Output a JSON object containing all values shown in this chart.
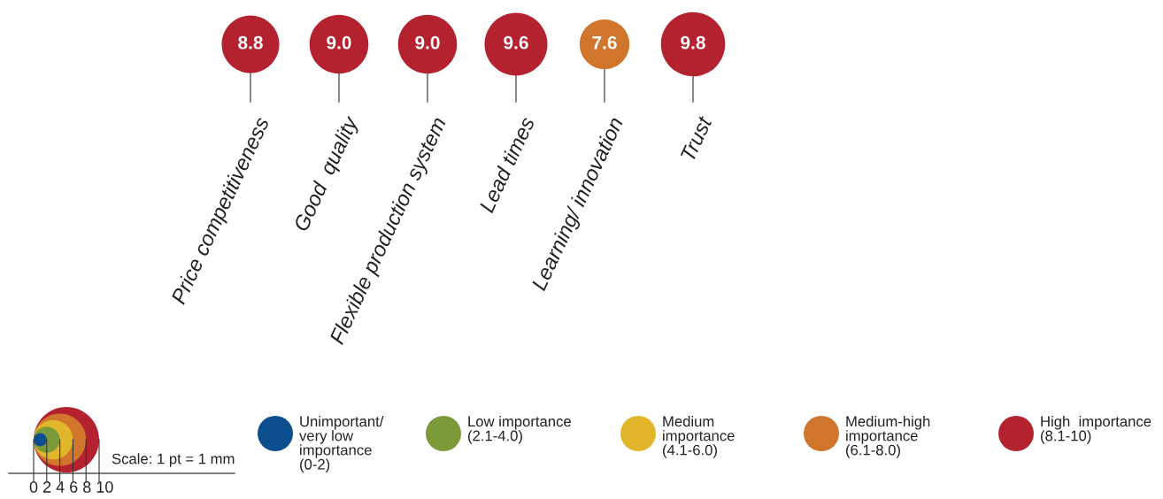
{
  "chart_data": {
    "type": "other",
    "categories": [
      "Price competitiveness",
      "Good  quality",
      "Flexible production system",
      "Lead times",
      "Learning/ innovation",
      "Trust"
    ],
    "series": [
      {
        "name": "Unimportant/\nvery low\nimportance\n(0-2)",
        "color": "#0b4f8f",
        "values": [
          null,
          null,
          null,
          null,
          null,
          null
        ]
      },
      {
        "name": "Low importance\n(2.1-4.0)",
        "color": "#7d9a3b",
        "values": [
          null,
          null,
          null,
          null,
          null,
          null
        ]
      },
      {
        "name": "Medium\nimportance\n(4.1-6.0)",
        "color": "#e2b62b",
        "values": [
          null,
          null,
          null,
          null,
          null,
          null
        ]
      },
      {
        "name": "Medium-high\nimportance\n(6.1-8.0)",
        "color": "#d0752c",
        "values": [
          null,
          null,
          null,
          null,
          7.6,
          null
        ],
        "value_labels": [
          null,
          null,
          null,
          null,
          "7.6",
          null
        ]
      },
      {
        "name": "High  importance\n(8.1-10)",
        "color": "#b5222f",
        "values": [
          8.8,
          9.0,
          9.0,
          9.6,
          null,
          9.8
        ],
        "value_labels": [
          "8.8",
          "9.0",
          "9.0",
          "9.6",
          null,
          "9.8"
        ]
      }
    ],
    "annotations": [
      "Scale: 1 pt = 1 mm",
      "0 2 4 6 8 10"
    ],
    "legend": "bottom"
  }
}
